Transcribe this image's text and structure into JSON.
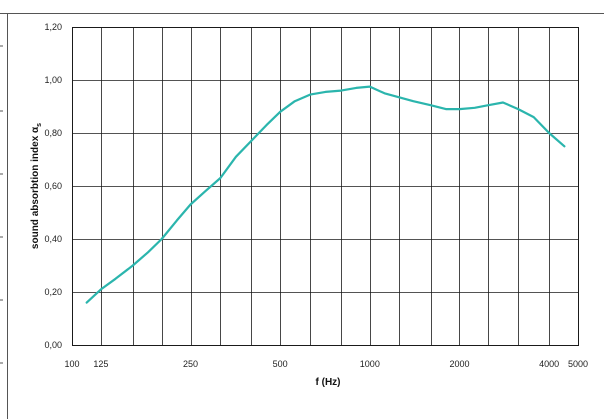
{
  "chart_data": {
    "type": "line",
    "title": "",
    "xlabel": "f (Hz)",
    "ylabel_main": "sound absorbtion index α",
    "ylabel_sub": "s",
    "x_scale": "log",
    "x_ticks": [
      {
        "value": 100,
        "label": "100"
      },
      {
        "value": 125,
        "label": "125"
      },
      {
        "value": 250,
        "label": "250"
      },
      {
        "value": 500,
        "label": "500"
      },
      {
        "value": 1000,
        "label": "1000"
      },
      {
        "value": 2000,
        "label": "2000"
      },
      {
        "value": 4000,
        "label": "4000"
      },
      {
        "value": 5000,
        "label": "5000"
      }
    ],
    "xlim": [
      100,
      5000
    ],
    "y_ticks": [
      {
        "value": 0,
        "label": "0,00"
      },
      {
        "value": 0.2,
        "label": "0,20"
      },
      {
        "value": 0.4,
        "label": "0,40"
      },
      {
        "value": 0.6,
        "label": "0,60"
      },
      {
        "value": 0.8,
        "label": "0,80"
      },
      {
        "value": 1.0,
        "label": "1,00"
      },
      {
        "value": 1.2,
        "label": "1,20"
      }
    ],
    "ylim": [
      0,
      1.2
    ],
    "grid": true,
    "line_color": "#2bb5ad",
    "series": [
      {
        "x": [
          112,
          125,
          140,
          160,
          180,
          200,
          225,
          250,
          280,
          315,
          355,
          400,
          450,
          500,
          560,
          630,
          710,
          800,
          900,
          1000,
          1120,
          1250,
          1400,
          1600,
          1800,
          2000,
          2250,
          2500,
          2800,
          3150,
          3550,
          4000,
          4500
        ],
        "y": [
          0.16,
          0.21,
          0.25,
          0.3,
          0.35,
          0.4,
          0.47,
          0.53,
          0.58,
          0.63,
          0.71,
          0.77,
          0.83,
          0.88,
          0.92,
          0.945,
          0.955,
          0.96,
          0.97,
          0.975,
          0.95,
          0.935,
          0.92,
          0.905,
          0.89,
          0.89,
          0.895,
          0.905,
          0.915,
          0.89,
          0.86,
          0.8,
          0.75
        ]
      }
    ]
  }
}
